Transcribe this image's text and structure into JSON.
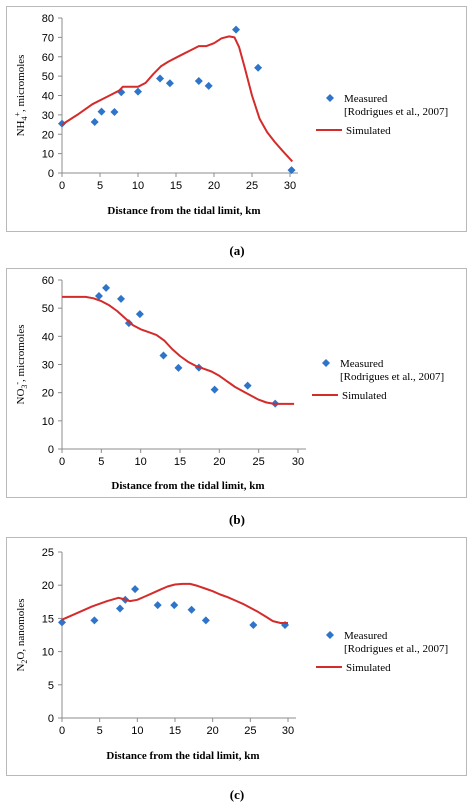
{
  "colors": {
    "measured": "#2e74c9",
    "simulated": "#d42b2b",
    "axis": "#8c8c8c",
    "frame": "#b9b9b9"
  },
  "legend": {
    "measured_line1": "Measured",
    "measured_line2": "[Rodrigues et al., 2007]",
    "simulated": "Simulated"
  },
  "chart_data": [
    {
      "type": "scatter",
      "caption": "(a)",
      "xlabel": "Distance from the tidal limit, km",
      "ylabel_parts": [
        "NH",
        "4",
        "+",
        ", micromoles"
      ],
      "xlim": [
        0,
        30
      ],
      "ylim": [
        0,
        80
      ],
      "xticks": [
        0,
        5,
        10,
        15,
        20,
        25,
        30
      ],
      "yticks": [
        0,
        10,
        20,
        30,
        40,
        50,
        60,
        70,
        80
      ],
      "series": [
        {
          "name": "Measured [Rodrigues et al., 2007]",
          "kind": "points",
          "x": [
            0,
            4.3,
            5.2,
            6.9,
            7.8,
            10,
            12.9,
            14.2,
            18,
            19.3,
            22.9,
            25.8,
            30.2
          ],
          "y": [
            25.5,
            26.3,
            31.7,
            31.5,
            41.7,
            42,
            48.8,
            46.3,
            47.5,
            45,
            74,
            54.3,
            1.5
          ]
        },
        {
          "name": "Simulated",
          "kind": "line",
          "x": [
            0,
            2,
            4,
            6,
            7.5,
            8,
            9,
            10,
            11,
            12,
            13,
            14,
            15,
            16,
            17,
            18,
            19,
            20,
            21,
            22,
            22.7,
            23.3,
            24,
            25,
            26,
            27,
            28,
            29,
            30.3
          ],
          "y": [
            25,
            30,
            35.5,
            39.5,
            42.5,
            44.5,
            44.5,
            44.5,
            46.5,
            51,
            55,
            57.5,
            59.5,
            61.5,
            63.5,
            65.5,
            65.5,
            67,
            69.5,
            70.5,
            70,
            65,
            55,
            40,
            28,
            21,
            16,
            11.5,
            6
          ]
        }
      ]
    },
    {
      "type": "scatter",
      "caption": "(b)",
      "xlabel": "Distance from the tidal limit, km",
      "ylabel_parts": [
        "NO",
        "3",
        "-",
        ", micromoles"
      ],
      "xlim": [
        0,
        30
      ],
      "ylim": [
        0,
        60
      ],
      "xticks": [
        0,
        5,
        10,
        15,
        20,
        25,
        30
      ],
      "yticks": [
        0,
        10,
        20,
        30,
        40,
        50,
        60
      ],
      "series": [
        {
          "name": "Measured [Rodrigues et al., 2007]",
          "kind": "points",
          "x": [
            4.7,
            5.6,
            7.5,
            8.5,
            9.9,
            12.9,
            14.8,
            17.4,
            19.4,
            23.6,
            27.1
          ],
          "y": [
            54.3,
            57.2,
            53.3,
            44.7,
            47.9,
            33.2,
            28.8,
            28.9,
            21.1,
            22.5,
            16.1
          ]
        },
        {
          "name": "Simulated",
          "kind": "line",
          "x": [
            0,
            1.5,
            3,
            4,
            5,
            6,
            7,
            8,
            9,
            10,
            11,
            12,
            13,
            14,
            15,
            16,
            17,
            18,
            19,
            20,
            21,
            22,
            23,
            24,
            25,
            26,
            27,
            28,
            29.5
          ],
          "y": [
            54,
            54,
            54,
            53.5,
            52.5,
            51,
            49,
            46.5,
            44,
            42.5,
            41.5,
            40.5,
            38.5,
            35.5,
            33,
            31,
            29.5,
            28.5,
            27.5,
            26,
            24,
            22,
            20.5,
            19,
            17.5,
            16.5,
            16,
            16,
            16
          ]
        }
      ]
    },
    {
      "type": "scatter",
      "caption": "(c)",
      "xlabel": "Distance from the tidal limit, km",
      "ylabel_parts": [
        "N",
        "2",
        "",
        "O, nanomoles"
      ],
      "xlim": [
        0,
        30
      ],
      "ylim": [
        0,
        25
      ],
      "xticks": [
        0,
        5,
        10,
        15,
        20,
        25,
        30
      ],
      "yticks": [
        0,
        5,
        10,
        15,
        20,
        25
      ],
      "series": [
        {
          "name": "Measured [Rodrigues et al., 2007]",
          "kind": "points",
          "x": [
            0,
            4.3,
            7.7,
            8.4,
            9.7,
            12.7,
            14.9,
            17.2,
            19.1,
            25.4,
            29.6
          ],
          "y": [
            14.4,
            14.7,
            16.5,
            17.8,
            19.4,
            17,
            17,
            16.3,
            14.7,
            14,
            14
          ]
        },
        {
          "name": "Simulated",
          "kind": "line",
          "x": [
            0,
            2,
            4,
            6,
            7.5,
            8.2,
            9,
            10,
            11,
            12,
            13,
            14,
            15,
            16,
            17,
            18,
            19,
            20,
            21,
            22,
            23,
            24,
            25,
            26,
            27,
            28,
            29,
            30
          ],
          "y": [
            14.8,
            15.8,
            16.8,
            17.6,
            18.1,
            17.9,
            17.6,
            17.8,
            18.3,
            18.8,
            19.3,
            19.8,
            20.1,
            20.2,
            20.2,
            19.9,
            19.5,
            19.1,
            18.6,
            18.2,
            17.7,
            17.2,
            16.6,
            16,
            15.3,
            14.6,
            14.3,
            14.3
          ]
        }
      ]
    }
  ]
}
